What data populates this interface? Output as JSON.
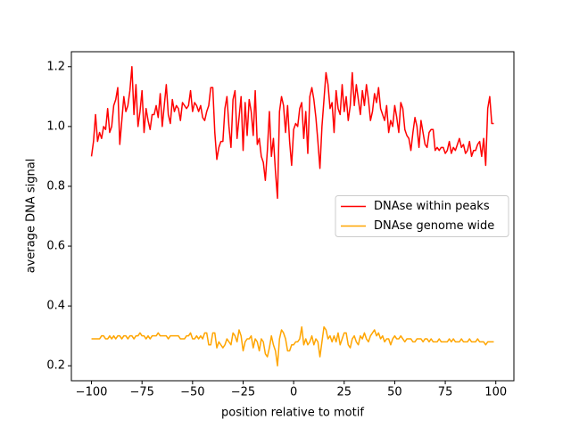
{
  "chart_data": {
    "type": "line",
    "xlabel": "position relative to motif",
    "ylabel": "average DNA signal",
    "x": [
      -100,
      -99,
      -98,
      -97,
      -96,
      -95,
      -94,
      -93,
      -92,
      -91,
      -90,
      -89,
      -88,
      -87,
      -86,
      -85,
      -84,
      -83,
      -82,
      -81,
      -80,
      -79,
      -78,
      -77,
      -76,
      -75,
      -74,
      -73,
      -72,
      -71,
      -70,
      -69,
      -68,
      -67,
      -66,
      -65,
      -64,
      -63,
      -62,
      -61,
      -60,
      -59,
      -58,
      -57,
      -56,
      -55,
      -54,
      -53,
      -52,
      -51,
      -50,
      -49,
      -48,
      -47,
      -46,
      -45,
      -44,
      -43,
      -42,
      -41,
      -40,
      -39,
      -38,
      -37,
      -36,
      -35,
      -34,
      -33,
      -32,
      -31,
      -30,
      -29,
      -28,
      -27,
      -26,
      -25,
      -24,
      -23,
      -22,
      -21,
      -20,
      -19,
      -18,
      -17,
      -16,
      -15,
      -14,
      -13,
      -12,
      -11,
      -10,
      -9,
      -8,
      -7,
      -6,
      -5,
      -4,
      -3,
      -2,
      -1,
      0,
      1,
      2,
      3,
      4,
      5,
      6,
      7,
      8,
      9,
      10,
      11,
      12,
      13,
      14,
      15,
      16,
      17,
      18,
      19,
      20,
      21,
      22,
      23,
      24,
      25,
      26,
      27,
      28,
      29,
      30,
      31,
      32,
      33,
      34,
      35,
      36,
      37,
      38,
      39,
      40,
      41,
      42,
      43,
      44,
      45,
      46,
      47,
      48,
      49,
      50,
      51,
      52,
      53,
      54,
      55,
      56,
      57,
      58,
      59,
      60,
      61,
      62,
      63,
      64,
      65,
      66,
      67,
      68,
      69,
      70,
      71,
      72,
      73,
      74,
      75,
      76,
      77,
      78,
      79,
      80,
      81,
      82,
      83,
      84,
      85,
      86,
      87,
      88,
      89,
      90,
      91,
      92,
      93,
      94,
      95,
      96,
      97,
      98,
      99
    ],
    "series": [
      {
        "name": "DNAse within peaks",
        "color": "#ff0000",
        "values": [
          0.9,
          0.95,
          1.04,
          0.95,
          0.98,
          0.96,
          1.0,
          0.99,
          1.06,
          0.98,
          1.0,
          1.07,
          1.09,
          1.13,
          0.94,
          1.02,
          1.1,
          1.05,
          1.07,
          1.12,
          1.2,
          1.04,
          1.14,
          1.0,
          1.05,
          1.12,
          0.98,
          1.06,
          1.02,
          0.99,
          1.04,
          1.04,
          1.07,
          1.03,
          1.11,
          1.0,
          1.07,
          1.14,
          1.04,
          1.01,
          1.09,
          1.05,
          1.07,
          1.06,
          1.02,
          1.08,
          1.07,
          1.06,
          1.07,
          1.12,
          1.05,
          1.08,
          1.07,
          1.05,
          1.07,
          1.03,
          1.02,
          1.05,
          1.07,
          1.13,
          1.13,
          0.98,
          0.89,
          0.93,
          0.95,
          0.95,
          1.06,
          1.1,
          1.0,
          0.93,
          1.09,
          1.12,
          0.96,
          1.03,
          1.1,
          0.92,
          1.08,
          0.97,
          1.09,
          1.05,
          0.97,
          1.12,
          0.94,
          0.96,
          0.9,
          0.88,
          0.82,
          0.92,
          1.05,
          0.9,
          0.96,
          0.85,
          0.76,
          1.05,
          1.1,
          1.07,
          0.98,
          1.07,
          0.95,
          0.87,
          0.99,
          1.01,
          1.0,
          1.06,
          1.08,
          0.96,
          1.05,
          0.91,
          1.1,
          1.13,
          1.09,
          1.03,
          0.95,
          0.86,
          1.0,
          1.09,
          1.18,
          1.14,
          1.06,
          1.08,
          0.98,
          1.12,
          1.06,
          1.04,
          1.14,
          1.05,
          1.1,
          1.02,
          1.07,
          1.18,
          1.07,
          1.14,
          1.09,
          1.04,
          1.12,
          1.07,
          1.14,
          1.09,
          1.02,
          1.05,
          1.11,
          1.08,
          1.13,
          1.06,
          1.04,
          1.02,
          1.07,
          0.98,
          1.02,
          1.0,
          1.07,
          1.03,
          0.98,
          1.08,
          1.06,
          0.99,
          0.97,
          0.96,
          0.92,
          0.98,
          1.03,
          1.0,
          0.93,
          1.02,
          0.98,
          0.94,
          0.93,
          0.98,
          0.99,
          0.99,
          0.92,
          0.93,
          0.92,
          0.93,
          0.93,
          0.91,
          0.92,
          0.95,
          0.91,
          0.93,
          0.92,
          0.94,
          0.96,
          0.93,
          0.94,
          0.91,
          0.92,
          0.95,
          0.9,
          0.92,
          0.92,
          0.94,
          0.95,
          0.9,
          0.96,
          0.87,
          1.06,
          1.1,
          1.01,
          1.01
        ]
      },
      {
        "name": "DNAse genome wide",
        "color": "#ffa500",
        "values": [
          0.29,
          0.29,
          0.29,
          0.29,
          0.29,
          0.3,
          0.3,
          0.29,
          0.29,
          0.3,
          0.29,
          0.3,
          0.29,
          0.3,
          0.3,
          0.29,
          0.3,
          0.3,
          0.29,
          0.3,
          0.3,
          0.29,
          0.3,
          0.3,
          0.31,
          0.3,
          0.3,
          0.29,
          0.3,
          0.29,
          0.3,
          0.3,
          0.3,
          0.31,
          0.3,
          0.3,
          0.3,
          0.3,
          0.29,
          0.3,
          0.3,
          0.3,
          0.3,
          0.3,
          0.29,
          0.29,
          0.29,
          0.3,
          0.3,
          0.31,
          0.29,
          0.29,
          0.3,
          0.29,
          0.3,
          0.29,
          0.31,
          0.31,
          0.27,
          0.27,
          0.31,
          0.31,
          0.26,
          0.28,
          0.27,
          0.26,
          0.27,
          0.29,
          0.28,
          0.27,
          0.31,
          0.3,
          0.28,
          0.32,
          0.3,
          0.25,
          0.28,
          0.29,
          0.29,
          0.3,
          0.26,
          0.29,
          0.28,
          0.25,
          0.29,
          0.28,
          0.24,
          0.23,
          0.26,
          0.3,
          0.27,
          0.25,
          0.2,
          0.29,
          0.32,
          0.31,
          0.29,
          0.25,
          0.25,
          0.27,
          0.27,
          0.28,
          0.28,
          0.29,
          0.33,
          0.27,
          0.29,
          0.27,
          0.28,
          0.3,
          0.27,
          0.29,
          0.28,
          0.23,
          0.28,
          0.33,
          0.32,
          0.29,
          0.3,
          0.28,
          0.3,
          0.28,
          0.31,
          0.27,
          0.29,
          0.31,
          0.31,
          0.27,
          0.26,
          0.29,
          0.3,
          0.28,
          0.27,
          0.3,
          0.29,
          0.31,
          0.29,
          0.28,
          0.3,
          0.31,
          0.32,
          0.3,
          0.31,
          0.29,
          0.3,
          0.28,
          0.29,
          0.29,
          0.27,
          0.29,
          0.3,
          0.29,
          0.29,
          0.3,
          0.29,
          0.28,
          0.29,
          0.29,
          0.29,
          0.28,
          0.28,
          0.29,
          0.29,
          0.29,
          0.28,
          0.29,
          0.29,
          0.28,
          0.29,
          0.28,
          0.28,
          0.28,
          0.29,
          0.28,
          0.28,
          0.28,
          0.28,
          0.29,
          0.28,
          0.29,
          0.28,
          0.28,
          0.28,
          0.29,
          0.28,
          0.28,
          0.28,
          0.29,
          0.28,
          0.28,
          0.28,
          0.29,
          0.28,
          0.28,
          0.28,
          0.27,
          0.28,
          0.28,
          0.28,
          0.28
        ]
      }
    ],
    "xlim": [
      -109.95,
      108.95
    ],
    "xticks": [
      {
        "value": -100,
        "label": "−100"
      },
      {
        "value": -75,
        "label": "−75"
      },
      {
        "value": -50,
        "label": "−50"
      },
      {
        "value": -25,
        "label": "−25"
      },
      0,
      25,
      50,
      75,
      100
    ],
    "ylim": [
      0.15,
      1.25
    ],
    "yticks": [
      0.2,
      0.4,
      0.6,
      0.8,
      {
        "value": 1,
        "label": "1.0"
      },
      1.2
    ],
    "legend": "center right"
  }
}
